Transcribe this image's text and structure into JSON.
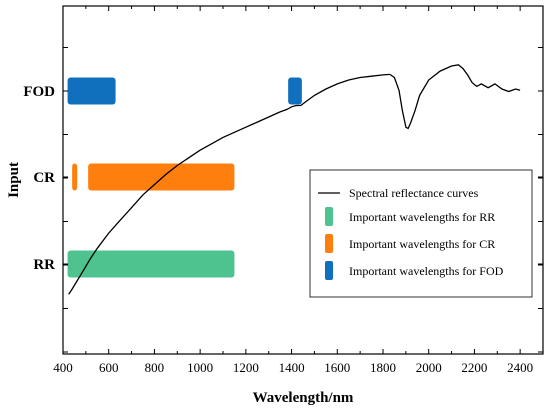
{
  "chart_data": {
    "type": "line",
    "xlabel": "Wavelength/nm",
    "ylabel": "Input",
    "xlim": [
      400,
      2500
    ],
    "x_ticks": [
      400,
      600,
      800,
      1000,
      1200,
      1400,
      1600,
      1800,
      2000,
      2200,
      2400
    ],
    "categories": [
      "RR",
      "CR",
      "FOD"
    ],
    "curve": {
      "name": "Spectral reflectance curves",
      "color": "#000000",
      "x": [
        425,
        440,
        460,
        480,
        500,
        520,
        550,
        600,
        650,
        700,
        750,
        800,
        850,
        900,
        950,
        1000,
        1050,
        1100,
        1150,
        1200,
        1250,
        1300,
        1350,
        1380,
        1400,
        1420,
        1440,
        1470,
        1500,
        1550,
        1600,
        1650,
        1700,
        1750,
        1800,
        1830,
        1850,
        1870,
        1885,
        1900,
        1910,
        1920,
        1940,
        1960,
        2000,
        2050,
        2100,
        2130,
        2150,
        2170,
        2190,
        2210,
        2230,
        2260,
        2290,
        2320,
        2350,
        2380,
        2400
      ],
      "y": [
        0.05,
        0.07,
        0.1,
        0.13,
        0.16,
        0.19,
        0.23,
        0.29,
        0.34,
        0.39,
        0.44,
        0.48,
        0.52,
        0.555,
        0.585,
        0.615,
        0.64,
        0.665,
        0.685,
        0.705,
        0.725,
        0.745,
        0.765,
        0.775,
        0.785,
        0.79,
        0.79,
        0.81,
        0.83,
        0.855,
        0.875,
        0.89,
        0.9,
        0.905,
        0.91,
        0.912,
        0.9,
        0.85,
        0.77,
        0.705,
        0.7,
        0.72,
        0.77,
        0.83,
        0.89,
        0.925,
        0.945,
        0.95,
        0.935,
        0.91,
        0.88,
        0.865,
        0.875,
        0.86,
        0.875,
        0.855,
        0.845,
        0.855,
        0.85
      ]
    },
    "bars": [
      {
        "category": "RR",
        "name": "Important wavelengths for RR",
        "color": "#4ec28f",
        "ranges": [
          [
            420,
            1150
          ]
        ]
      },
      {
        "category": "CR",
        "name": "Important wavelengths for CR",
        "color": "#ff7f0e",
        "ranges": [
          [
            440,
            462
          ],
          [
            510,
            1150
          ]
        ]
      },
      {
        "category": "FOD",
        "name": "Important wavelengths for FOD",
        "color": "#1170bd",
        "ranges": [
          [
            420,
            630
          ],
          [
            1385,
            1445
          ]
        ]
      }
    ],
    "legend": {
      "placement": "right",
      "entries": [
        "Spectral reflectance curves",
        "Important wavelengths for RR",
        "Important wavelengths for CR",
        "Important wavelengths for FOD"
      ]
    }
  }
}
